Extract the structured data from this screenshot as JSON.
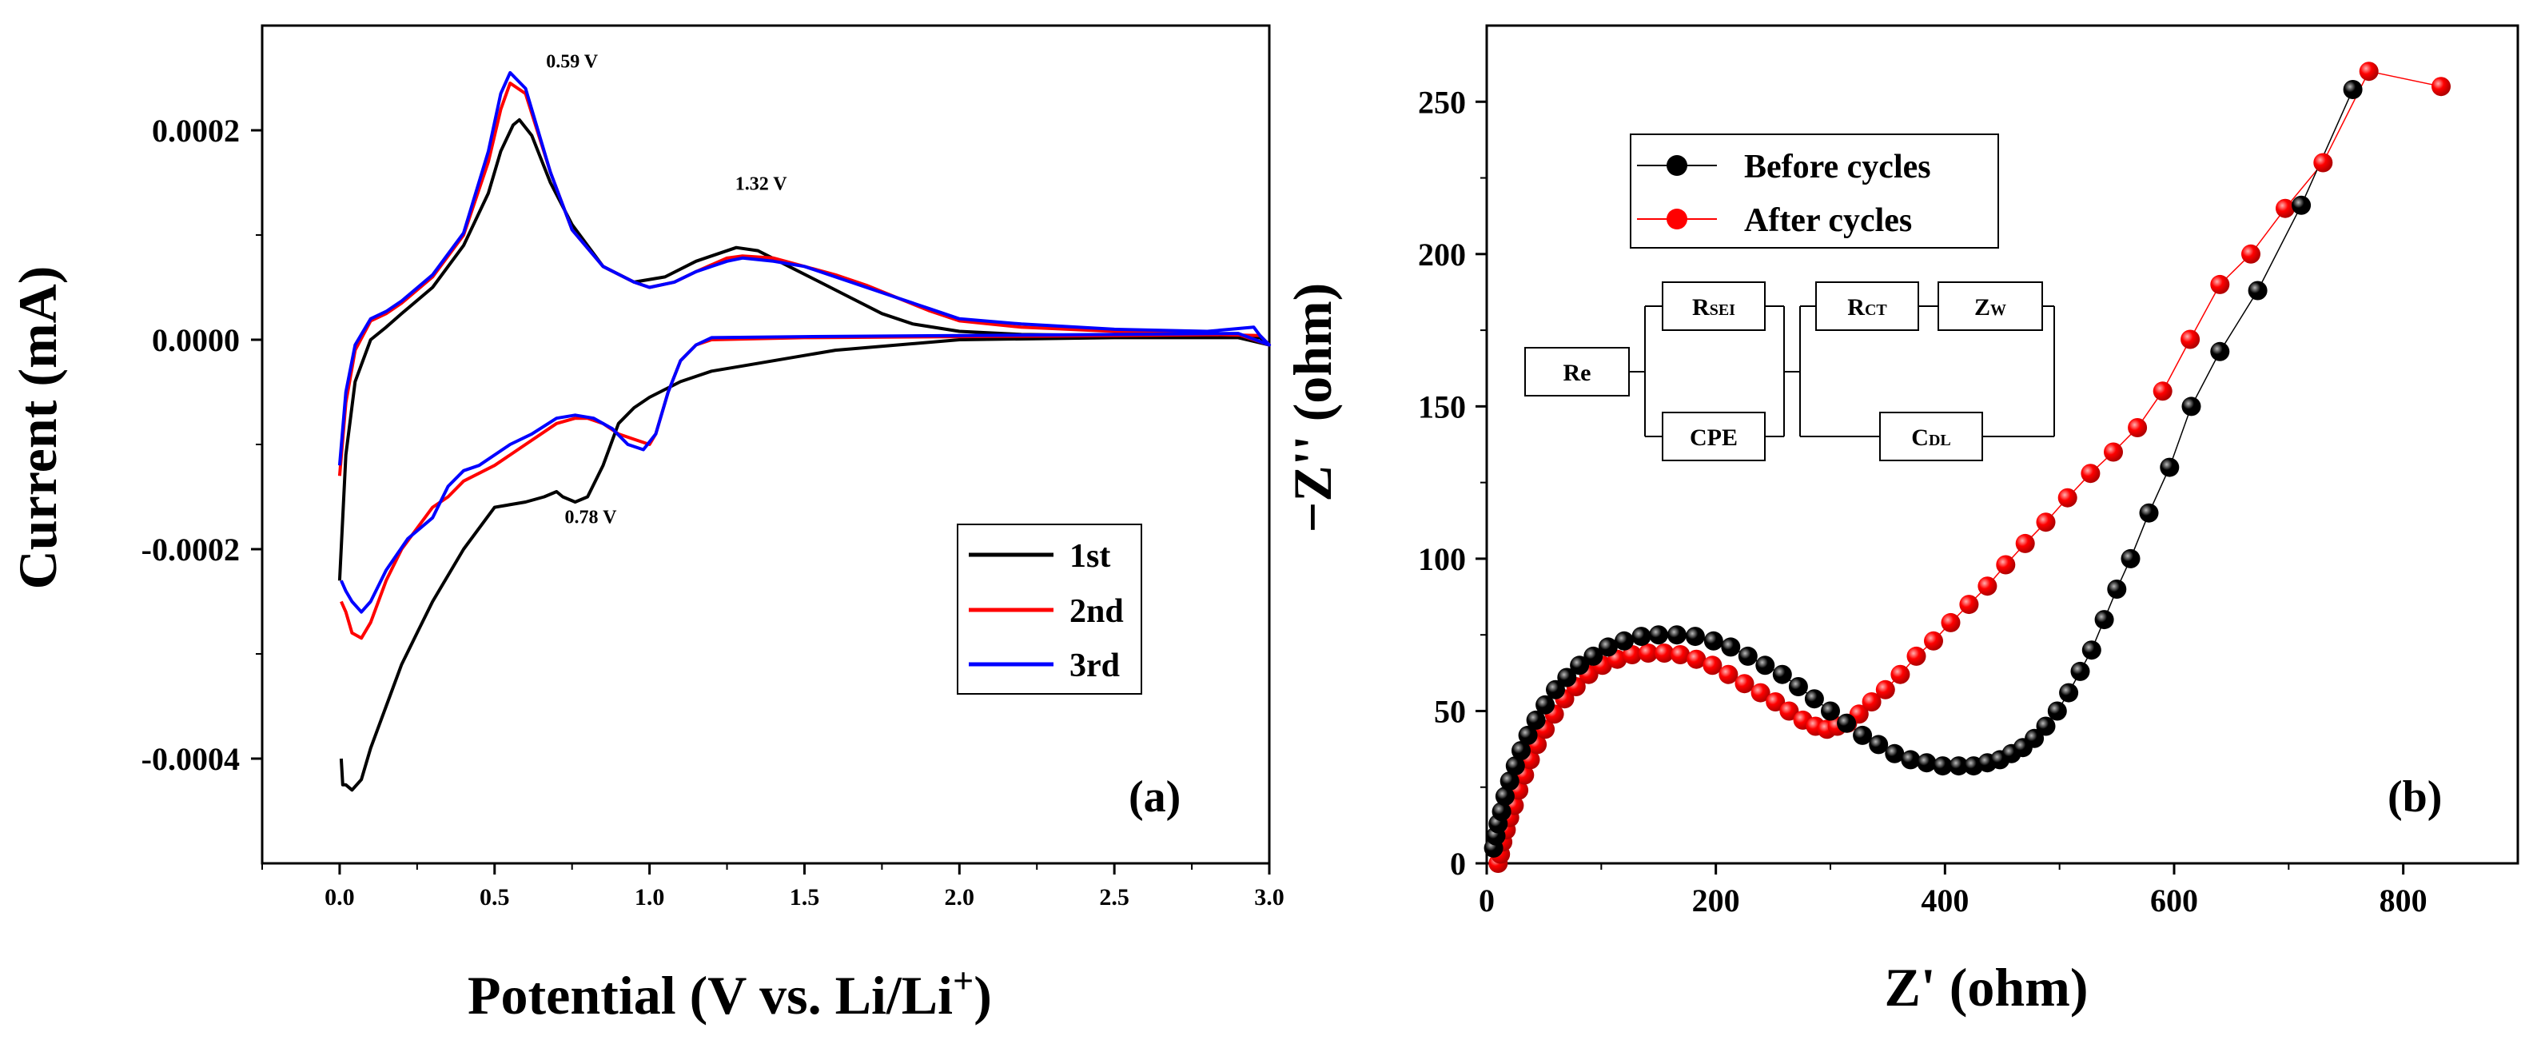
{
  "chart_data": [
    {
      "type": "line",
      "panel_label": "(a)",
      "xlabel": "Potential (V vs. Li/Li",
      "xlabel_sup": "+",
      "xlabel_close": ")",
      "ylabel": "Current (mA)",
      "xlim": [
        -0.25,
        3.0
      ],
      "ylim": [
        -0.0005,
        0.0003
      ],
      "x_ticks": [
        "0.0",
        "0.5",
        "1.0",
        "1.5",
        "2.0",
        "2.5",
        "3.0"
      ],
      "y_ticks": [
        "0.0002",
        "0.0000",
        "-0.0002",
        "-0.0004"
      ],
      "annotations": [
        {
          "text": "0.59 V",
          "x": 0.75,
          "y": 0.00026
        },
        {
          "text": "1.32 V",
          "x": 1.36,
          "y": 0.000143
        },
        {
          "text": "0.78 V",
          "x": 0.81,
          "y": -0.000175
        }
      ],
      "legend": [
        "1st",
        "2nd",
        "3rd"
      ],
      "series": [
        {
          "name": "1st",
          "color": "#000000",
          "x": [
            0.0,
            0.02,
            0.05,
            0.1,
            0.15,
            0.2,
            0.3,
            0.4,
            0.48,
            0.52,
            0.56,
            0.58,
            0.62,
            0.68,
            0.75,
            0.85,
            0.95,
            1.05,
            1.15,
            1.2,
            1.28,
            1.35,
            1.45,
            1.55,
            1.65,
            1.75,
            1.85,
            2.0,
            2.2,
            2.5,
            2.8,
            2.97,
            3.0,
            2.9,
            2.5,
            2.0,
            1.6,
            1.3,
            1.2,
            1.1,
            1.0,
            0.95,
            0.9,
            0.85,
            0.8,
            0.76,
            0.72,
            0.7,
            0.66,
            0.6,
            0.5,
            0.4,
            0.3,
            0.25,
            0.2,
            0.15,
            0.1,
            0.07,
            0.04,
            0.02,
            0.01,
            0.005
          ],
          "y": [
            -0.00023,
            -0.00011,
            -4e-05,
            0.0,
            1.2e-05,
            2.5e-05,
            5e-05,
            9e-05,
            0.00014,
            0.00018,
            0.000205,
            0.00021,
            0.000195,
            0.00015,
            0.00011,
            7e-05,
            5.5e-05,
            6e-05,
            7.5e-05,
            8e-05,
            8.8e-05,
            8.5e-05,
            7e-05,
            5.5e-05,
            4e-05,
            2.5e-05,
            1.5e-05,
            8e-06,
            5e-06,
            4e-06,
            3e-06,
            2e-06,
            -5e-06,
            2e-06,
            2e-06,
            0.0,
            -1e-05,
            -2.5e-05,
            -3e-05,
            -4e-05,
            -5.5e-05,
            -6.5e-05,
            -8e-05,
            -0.00012,
            -0.00015,
            -0.000155,
            -0.00015,
            -0.000145,
            -0.00015,
            -0.000155,
            -0.00016,
            -0.0002,
            -0.00025,
            -0.00028,
            -0.00031,
            -0.00035,
            -0.00039,
            -0.00042,
            -0.00043,
            -0.000425,
            -0.000425,
            -0.0004
          ]
        },
        {
          "name": "2nd",
          "color": "#ff0000",
          "x": [
            0.0,
            0.02,
            0.05,
            0.1,
            0.15,
            0.2,
            0.3,
            0.4,
            0.48,
            0.52,
            0.55,
            0.6,
            0.68,
            0.75,
            0.85,
            0.95,
            1.0,
            1.08,
            1.15,
            1.25,
            1.3,
            1.4,
            1.5,
            1.6,
            1.7,
            1.8,
            1.9,
            2.0,
            2.2,
            2.5,
            2.8,
            2.97,
            3.0,
            2.9,
            2.5,
            2.0,
            1.5,
            1.2,
            1.15,
            1.1,
            1.06,
            1.02,
            1.0,
            0.95,
            0.9,
            0.85,
            0.8,
            0.76,
            0.7,
            0.6,
            0.5,
            0.4,
            0.35,
            0.3,
            0.25,
            0.2,
            0.15,
            0.1,
            0.07,
            0.04,
            0.02,
            0.005
          ],
          "y": [
            -0.00013,
            -6e-05,
            -1e-05,
            1.8e-05,
            2.5e-05,
            3.5e-05,
            6e-05,
            0.0001,
            0.00017,
            0.00022,
            0.000245,
            0.000235,
            0.00016,
            0.000105,
            7e-05,
            5.5e-05,
            5e-05,
            5.5e-05,
            6.5e-05,
            7.8e-05,
            8e-05,
            7.8e-05,
            7e-05,
            6.2e-05,
            5.2e-05,
            4e-05,
            2.8e-05,
            1.8e-05,
            1.2e-05,
            8e-06,
            5e-06,
            4e-06,
            -5e-06,
            5e-06,
            4e-06,
            3e-06,
            2e-06,
            0.0,
            -5e-06,
            -2e-05,
            -5e-05,
            -9e-05,
            -0.0001,
            -9.5e-05,
            -9e-05,
            -8e-05,
            -7.5e-05,
            -7.5e-05,
            -8e-05,
            -0.0001,
            -0.00012,
            -0.000135,
            -0.00015,
            -0.00016,
            -0.00018,
            -0.0002,
            -0.00023,
            -0.00027,
            -0.000285,
            -0.00028,
            -0.00026,
            -0.00025
          ]
        },
        {
          "name": "3rd",
          "color": "#0000ff",
          "x": [
            0.0,
            0.02,
            0.05,
            0.1,
            0.15,
            0.2,
            0.3,
            0.4,
            0.48,
            0.52,
            0.55,
            0.6,
            0.68,
            0.75,
            0.85,
            0.95,
            1.0,
            1.08,
            1.15,
            1.25,
            1.3,
            1.4,
            1.5,
            1.6,
            1.7,
            1.8,
            1.9,
            2.0,
            2.2,
            2.5,
            2.8,
            2.95,
            2.97,
            3.0,
            2.9,
            2.5,
            2.0,
            1.5,
            1.2,
            1.15,
            1.1,
            1.06,
            1.02,
            0.98,
            0.93,
            0.88,
            0.82,
            0.76,
            0.7,
            0.62,
            0.55,
            0.45,
            0.4,
            0.35,
            0.3,
            0.22,
            0.15,
            0.1,
            0.07,
            0.04,
            0.02,
            0.005
          ],
          "y": [
            -0.00012,
            -5e-05,
            -5e-06,
            2e-05,
            2.7e-05,
            3.7e-05,
            6.2e-05,
            0.000102,
            0.00018,
            0.000235,
            0.000255,
            0.00024,
            0.00016,
            0.000105,
            7e-05,
            5.5e-05,
            5e-05,
            5.5e-05,
            6.5e-05,
            7.5e-05,
            7.8e-05,
            7.5e-05,
            7e-05,
            6e-05,
            5e-05,
            4e-05,
            3e-05,
            2e-05,
            1.5e-05,
            1e-05,
            8e-06,
            1.2e-05,
            4e-06,
            -5e-06,
            6e-06,
            5e-06,
            4e-06,
            3e-06,
            2e-06,
            -5e-06,
            -2e-05,
            -5e-05,
            -9e-05,
            -0.000105,
            -0.0001,
            -8.5e-05,
            -7.5e-05,
            -7.2e-05,
            -7.5e-05,
            -9e-05,
            -0.0001,
            -0.00012,
            -0.000125,
            -0.00014,
            -0.00017,
            -0.00019,
            -0.00022,
            -0.00025,
            -0.00026,
            -0.00025,
            -0.00024,
            -0.00023
          ]
        }
      ]
    },
    {
      "type": "scatter",
      "panel_label": "(b)",
      "xlabel": "Z' (ohm)",
      "ylabel": "−Z'' (ohm)",
      "xlim": [
        0,
        900
      ],
      "ylim": [
        0,
        275
      ],
      "x_ticks": [
        "0",
        "200",
        "400",
        "600",
        "800"
      ],
      "y_ticks": [
        "0",
        "50",
        "100",
        "150",
        "200",
        "250"
      ],
      "legend": [
        "Before cycles",
        "After cycles"
      ],
      "circuit": {
        "re": "Re",
        "rsei": "R",
        "rsei_sub": "SEI",
        "cpe": "CPE",
        "rct": "R",
        "rct_sub": "CT",
        "zw": "Z",
        "zw_sub": "W",
        "cdl": "C",
        "cdl_sub": "DL"
      },
      "series": [
        {
          "name": "Before cycles",
          "color": "#000000",
          "x": [
            6,
            8,
            10,
            13,
            16,
            20,
            25,
            30,
            36,
            43,
            51,
            60,
            70,
            81,
            93,
            106,
            120,
            135,
            150,
            166,
            182,
            198,
            213,
            228,
            243,
            258,
            272,
            286,
            300,
            314,
            328,
            342,
            356,
            370,
            384,
            398,
            412,
            425,
            437,
            448,
            458,
            468,
            478,
            488,
            498,
            508,
            518,
            528,
            539,
            550,
            562,
            578,
            596,
            615,
            640,
            673,
            711,
            756
          ],
          "y": [
            5,
            9,
            13,
            17,
            22,
            27,
            32,
            37,
            42,
            47,
            52,
            57,
            61,
            65,
            68,
            71,
            73,
            74.5,
            75,
            75,
            74.5,
            73,
            71,
            68,
            65,
            62,
            58,
            54,
            50,
            46,
            42,
            39,
            36,
            34,
            33,
            32,
            32,
            32,
            33,
            34,
            36,
            38,
            41,
            45,
            50,
            56,
            63,
            70,
            80,
            90,
            100,
            115,
            130,
            150,
            168,
            188,
            216,
            254
          ]
        },
        {
          "name": "After cycles",
          "color": "#ff0000",
          "x": [
            10,
            12,
            14,
            17,
            20,
            24,
            28,
            33,
            38,
            44,
            51,
            59,
            68,
            78,
            89,
            101,
            114,
            127,
            141,
            155,
            169,
            183,
            197,
            211,
            225,
            239,
            252,
            264,
            276,
            287,
            297,
            306,
            315,
            325,
            336,
            348,
            361,
            375,
            390,
            405,
            421,
            437,
            453,
            470,
            488,
            507,
            527,
            547,
            568,
            590,
            614,
            640,
            667,
            697,
            730,
            770,
            833
          ],
          "y": [
            0,
            3,
            7,
            11,
            15,
            19,
            24,
            29,
            34,
            39,
            44,
            49,
            54,
            58,
            62,
            65,
            67,
            68.5,
            69,
            69,
            68.5,
            67,
            65,
            62,
            59,
            56,
            53,
            50,
            47,
            45,
            44,
            45,
            46,
            49,
            53,
            57,
            62,
            68,
            73,
            79,
            85,
            91,
            98,
            105,
            112,
            120,
            128,
            135,
            143,
            155,
            172,
            190,
            200,
            215,
            230,
            260,
            255
          ]
        }
      ]
    }
  ]
}
